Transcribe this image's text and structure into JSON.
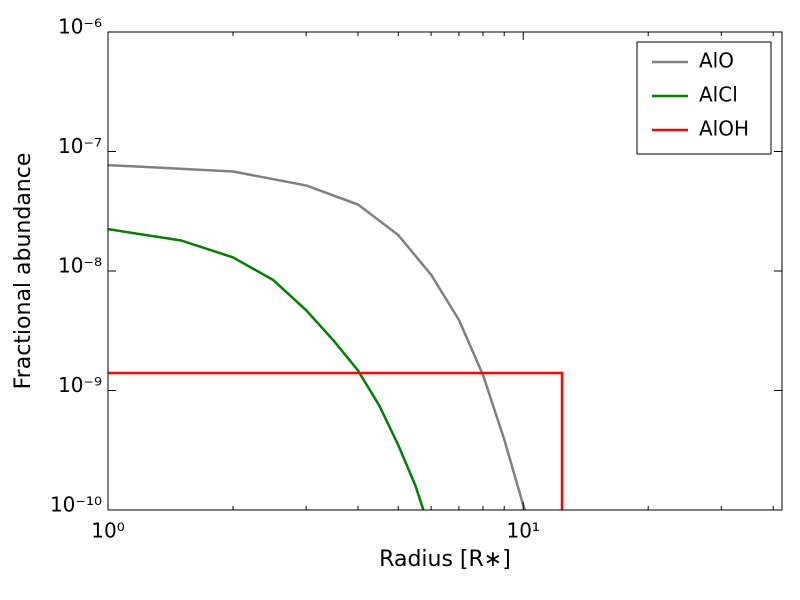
{
  "chart_data": {
    "type": "line",
    "xlabel": "Radius [R∗]",
    "ylabel": "Fractional abundance",
    "xscale": "log",
    "yscale": "log",
    "xlim": [
      1,
      42
    ],
    "ylim": [
      1e-10,
      1e-06
    ],
    "xticks": [
      {
        "value": 1,
        "label": "10⁰"
      },
      {
        "value": 10,
        "label": "10¹"
      }
    ],
    "xminorticks": [
      2,
      3,
      4,
      5,
      6,
      7,
      8,
      9,
      20,
      30,
      40
    ],
    "yticks": [
      {
        "value": 1e-10,
        "label": "10⁻¹⁰"
      },
      {
        "value": 1e-09,
        "label": "10⁻⁹"
      },
      {
        "value": 1e-08,
        "label": "10⁻⁸"
      },
      {
        "value": 1e-07,
        "label": "10⁻⁷"
      },
      {
        "value": 1e-06,
        "label": "10⁻⁶"
      }
    ],
    "legend": "upper right",
    "series": [
      {
        "name": "AlO",
        "color": "#808080",
        "x": [
          1,
          2,
          3,
          4,
          5,
          6,
          7,
          8,
          9,
          10,
          10.1
        ],
        "values": [
          7.7e-08,
          6.8e-08,
          5.2e-08,
          3.6e-08,
          2e-08,
          9.3e-09,
          3.9e-09,
          1.35e-09,
          3.9e-10,
          1.1e-10,
          1e-10
        ]
      },
      {
        "name": "AlCl",
        "color": "#008000",
        "x": [
          1,
          1.5,
          2,
          2.5,
          3,
          3.5,
          4,
          4.5,
          5,
          5.5,
          5.75
        ],
        "values": [
          2.24e-08,
          1.8e-08,
          1.3e-08,
          8.4e-09,
          4.7e-09,
          2.6e-09,
          1.47e-09,
          7.5e-10,
          3.5e-10,
          1.6e-10,
          1e-10
        ]
      },
      {
        "name": "AlOH",
        "color": "#ff0000",
        "x": [
          1,
          12.4,
          12.4
        ],
        "values": [
          1.4e-09,
          1.4e-09,
          1e-10
        ]
      }
    ]
  }
}
